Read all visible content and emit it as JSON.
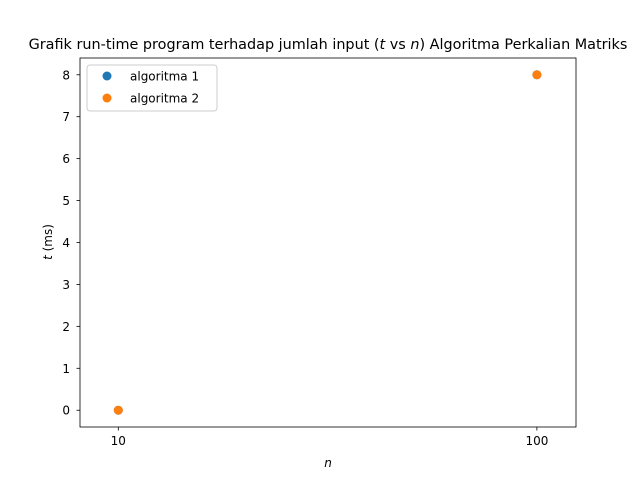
{
  "chart_data": {
    "type": "scatter",
    "title_prefix": "Grafik run-time program terhadap jumlah input (",
    "title_t": "t",
    "title_vs": " vs ",
    "title_n": "n",
    "title_suffix": ") Algoritma Perkalian Matriks",
    "xlabel": "n",
    "ylabel_var": "t",
    "ylabel_unit": " (ms)",
    "x_scale": "log",
    "xlim": [
      8.1,
      124
    ],
    "ylim": [
      -0.4,
      8.4
    ],
    "x_ticks": [
      10,
      100
    ],
    "x_tick_labels": [
      "10",
      "100"
    ],
    "y_ticks": [
      0,
      1,
      2,
      3,
      4,
      5,
      6,
      7,
      8
    ],
    "y_tick_labels": [
      "0",
      "1",
      "2",
      "3",
      "4",
      "5",
      "6",
      "7",
      "8"
    ],
    "grid": false,
    "legend_position": "top-left",
    "series": [
      {
        "name": "algoritma 1",
        "color": "#1f77b4",
        "x": [
          10,
          100
        ],
        "y": [
          0,
          8
        ]
      },
      {
        "name": "algoritma 2",
        "color": "#ff7f0e",
        "x": [
          10,
          100
        ],
        "y": [
          0,
          8
        ]
      }
    ]
  }
}
